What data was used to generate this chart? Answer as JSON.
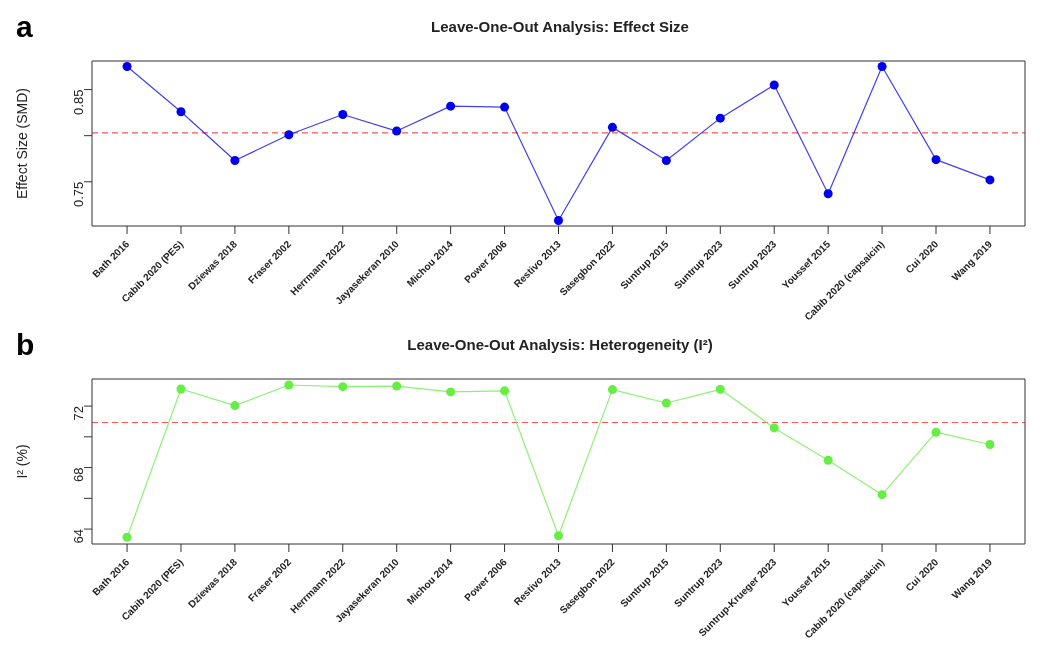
{
  "chart_data": [
    {
      "type": "line",
      "title": "Leave-One-Out Analysis: Effect Size",
      "ylabel": "Effect Size (SMD)",
      "annotations": [
        "a"
      ],
      "categories": [
        "Bath 2016",
        "Cabib 2020 (PES)",
        "Dziewas 2018",
        "Fraser 2002",
        "Herrmann 2022",
        "Jayasekeran 2010",
        "Michou 2014",
        "Power 2006",
        "Restivo 2013",
        "Sasegbon 2022",
        "Suntrup 2015",
        "Suntrup 2023",
        "Suntrup 2023",
        "Youssef 2015",
        "Cabib 2020 (capsaicin)",
        "Cui 2020",
        "Wang 2019"
      ],
      "series": [
        {
          "color": "#0000ee",
          "values": [
            0.875,
            0.826,
            0.773,
            0.801,
            0.823,
            0.805,
            0.832,
            0.831,
            0.708,
            0.809,
            0.773,
            0.819,
            0.855,
            0.737,
            0.875,
            0.774,
            0.752
          ]
        }
      ],
      "ylim": [
        0.702,
        0.881
      ],
      "yticks": [
        0.75,
        {
          "value": 0.8,
          "label": null
        },
        0.85
      ],
      "ref_lines": [
        {
          "axis": "y",
          "value": 0.803,
          "color": "#ff5555",
          "line_style": "dashed"
        }
      ],
      "marker": "circle",
      "line_style": "solid"
    },
    {
      "type": "line",
      "title": "Leave-One-Out Analysis: Heterogeneity (I²)",
      "ylabel": "I² (%)",
      "annotations": [
        "b"
      ],
      "categories": [
        "Bath 2016",
        "Cabib 2020 (PES)",
        "Dziewas 2018",
        "Fraser 2002",
        "Herrmann 2022",
        "Jayasekeran 2010",
        "Michou 2014",
        "Power 2006",
        "Restivo 2013",
        "Sasegbon 2022",
        "Suntrup 2015",
        "Suntrup 2023",
        "Suntrup-Krueger 2023",
        "Youssef 2015",
        "Cabib 2020 (capsaicin)",
        "Cui 2020",
        "Wang 2019"
      ],
      "series": [
        {
          "color": "#66ee44",
          "values": [
            63.47,
            73.11,
            72.03,
            73.37,
            73.26,
            73.3,
            72.92,
            72.99,
            63.57,
            73.07,
            72.2,
            73.09,
            70.58,
            68.47,
            66.24,
            70.3,
            69.5
          ]
        }
      ],
      "ylim": [
        63.03,
        73.76
      ],
      "yticks": [
        64,
        {
          "value": 66,
          "label": null
        },
        68,
        {
          "value": 70,
          "label": null
        },
        72
      ],
      "ref_lines": [
        {
          "axis": "y",
          "value": 70.93,
          "color": "#ff5555",
          "line_style": "dashed"
        }
      ],
      "marker": "circle",
      "line_style": "solid"
    }
  ]
}
